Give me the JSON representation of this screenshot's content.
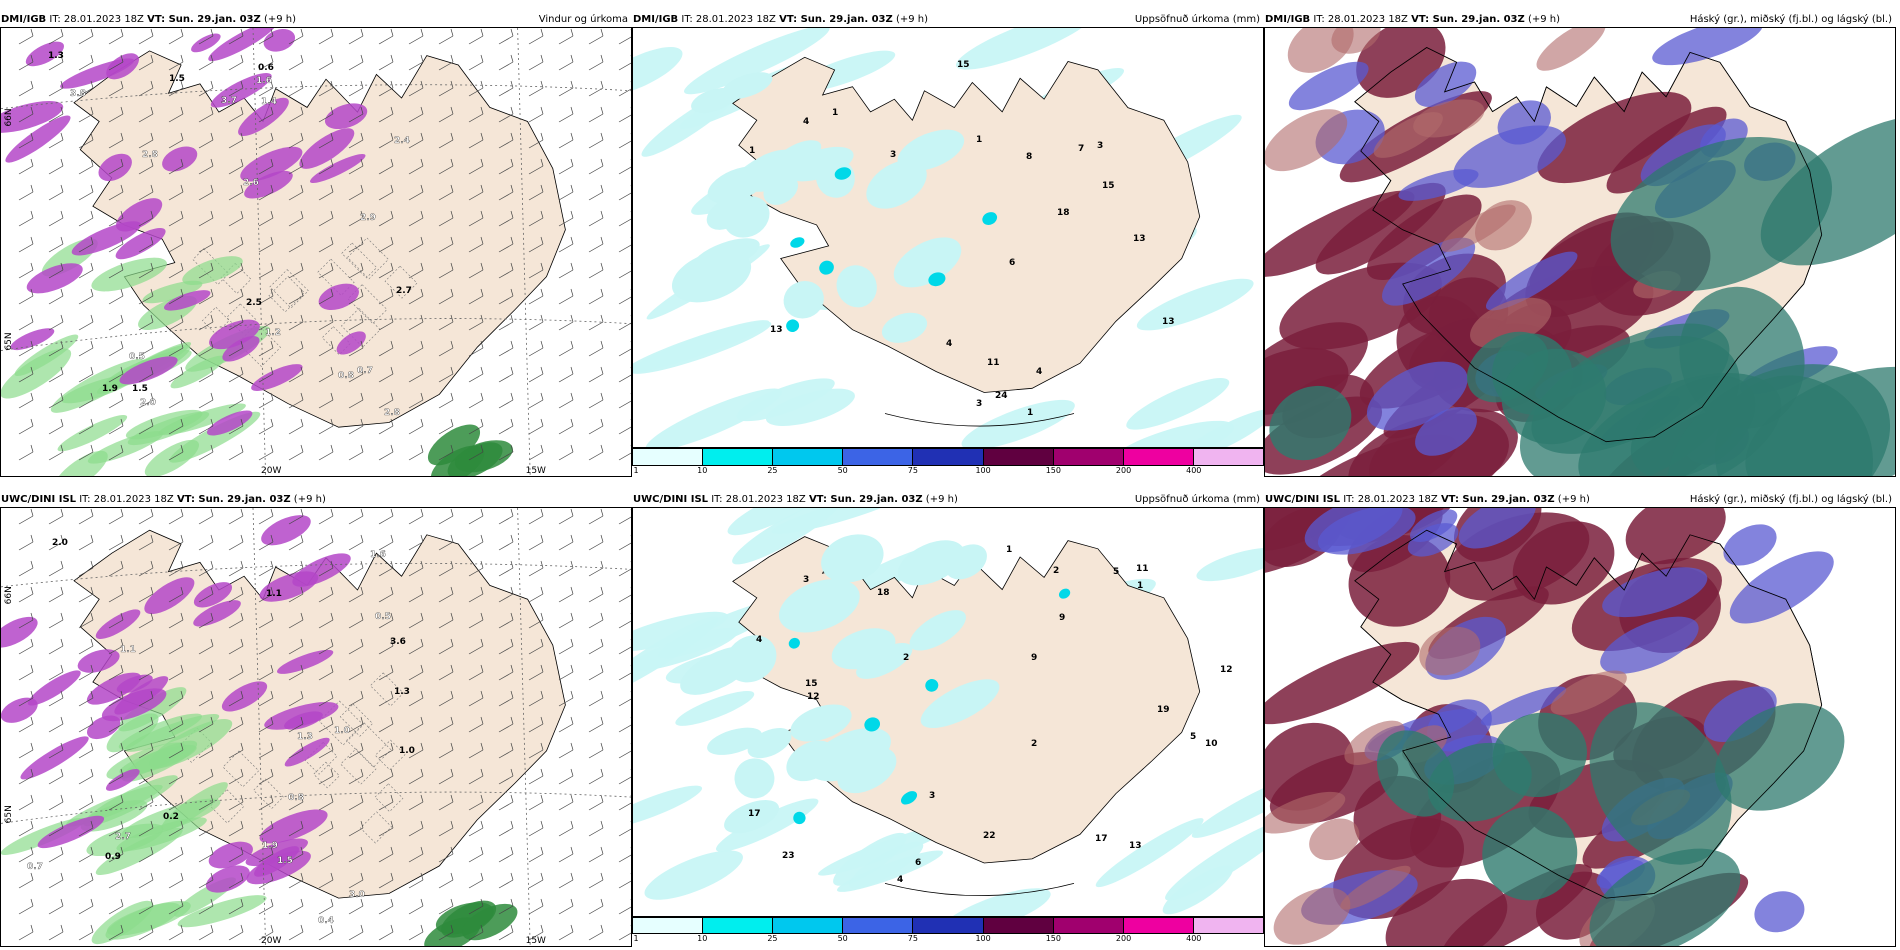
{
  "top": {
    "model_label": "DMI/IGB",
    "init_time": "IT: 28.01.2023 18Z",
    "valid_time": "VT: Sun. 29.jan. 03Z",
    "lead": "(+9 h)",
    "titles": [
      "Vindur og úrkoma",
      "Uppsöfnuð úrkoma (mm)",
      "Háský (gr.), miðský (fj.bl.) og lágský (bl.)"
    ],
    "wind_values": [
      "1.3",
      "2.9",
      "2.8",
      "2.7",
      "3.8",
      "2.0",
      "1.5",
      "2.8",
      "1.2",
      "1.5",
      "1.4",
      "1.6",
      "2.5",
      "3.7",
      "2.6",
      "1.9",
      "2.4",
      "0.7",
      "0.6",
      "0.5",
      "0.8"
    ],
    "precip_values": [
      "13",
      "13",
      "13",
      "18",
      "1",
      "1",
      "1",
      "1",
      "8",
      "7",
      "15",
      "15",
      "11",
      "4",
      "6",
      "3",
      "4",
      "4",
      "3",
      "24",
      "3"
    ]
  },
  "bottom": {
    "model_label": "UWC/DINI ISL",
    "init_time": "IT: 28.01.2023 18Z",
    "valid_time": "VT: Sun. 29.jan. 03Z",
    "lead": "(+9 h)",
    "titles": [
      "",
      "Uppsöfnuð úrkoma (mm)",
      "Háský (gr.), miðský (fj.bl.) og lágský (bl.)"
    ],
    "wind_values": [
      "1.3",
      "2.7",
      "0.5",
      "1.0",
      "3.0",
      "1.0",
      "2.0",
      "1.5",
      "0.8",
      "1.1",
      "0.7",
      "1.6",
      "3.6",
      "1.1",
      "0.4",
      "0.2",
      "1.3",
      "1.9",
      "0.9"
    ],
    "precip_values": [
      "9",
      "6",
      "5",
      "4",
      "2",
      "12",
      "11",
      "10",
      "5",
      "3",
      "9",
      "17",
      "12",
      "23",
      "15",
      "18",
      "13",
      "22",
      "17",
      "19",
      "2",
      "3",
      "2",
      "4",
      "1",
      "1"
    ]
  },
  "axis_labels": {
    "lat66": "66N",
    "lat65": "65N",
    "lon20": "20W",
    "lon15": "15W"
  },
  "colorbar": {
    "ticks": [
      "1",
      "10",
      "25",
      "50",
      "75",
      "100",
      "150",
      "200",
      "400"
    ],
    "colors": [
      "#e6ffff",
      "#00eeee",
      "#00c8ee",
      "#3c64e6",
      "#2030b4",
      "#600040",
      "#a0006e",
      "#ee00a0",
      "#f0b4f0"
    ]
  },
  "colors": {
    "land": "#f5e6d7",
    "precip_magenta": "#b446c8",
    "precip_green": "#8cdc8c",
    "cyan_light": "#c8f5f5",
    "cloud_maroon": "#7a1e3c",
    "cloud_blue": "#5a5ad2",
    "cloud_teal": "#2e7a6e"
  }
}
